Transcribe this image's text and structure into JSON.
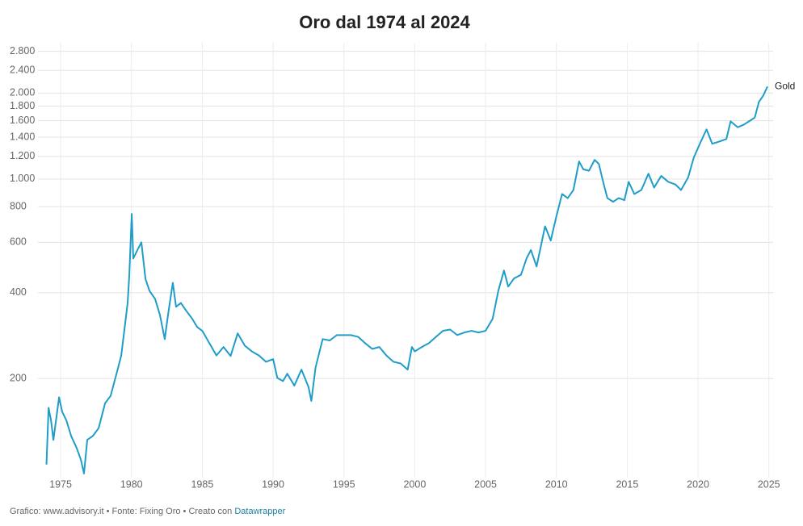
{
  "chart_data": {
    "type": "line",
    "title": "Oro dal 1974 al 2024",
    "footer": {
      "text": "Grafico: www.advisory.it • Fonte: Fixing Oro • Creato con",
      "link": "Datawrapper"
    },
    "log_scale": true,
    "grid": true,
    "xlim": [
      1973.4,
      2025.3
    ],
    "xticks": [
      1975,
      1980,
      1985,
      1990,
      1995,
      2000,
      2005,
      2010,
      2015,
      2020,
      2025
    ],
    "ylim": [
      90,
      3000
    ],
    "yticks": [
      200,
      400,
      600,
      800,
      {
        "value": 1000,
        "label": "1.000"
      },
      {
        "value": 1200,
        "label": "1.200"
      },
      {
        "value": 1400,
        "label": "1.400"
      },
      {
        "value": 1600,
        "label": "1.600"
      },
      {
        "value": 1800,
        "label": "1.800"
      },
      {
        "value": 2000,
        "label": "2.000"
      },
      {
        "value": 2400,
        "label": "2.400"
      },
      {
        "value": 2800,
        "label": "2.800"
      }
    ],
    "x": [
      1974.0,
      1974.15,
      1974.32,
      1974.49,
      1974.89,
      1975.11,
      1975.4,
      1975.74,
      1976.14,
      1976.43,
      1976.65,
      1976.88,
      1977.28,
      1977.68,
      1978.14,
      1978.53,
      1978.99,
      1979.28,
      1979.56,
      1979.73,
      1979.85,
      1980.02,
      1980.13,
      1980.42,
      1980.7,
      1980.99,
      1981.27,
      1981.67,
      1982.01,
      1982.35,
      1982.58,
      1982.92,
      1983.15,
      1983.49,
      1983.84,
      1984.29,
      1984.64,
      1985.0,
      1985.5,
      1986.0,
      1986.5,
      1987.0,
      1987.5,
      1988.0,
      1988.5,
      1989.0,
      1989.5,
      1990.0,
      1990.3,
      1990.7,
      1991.0,
      1991.5,
      1992.0,
      1992.5,
      1992.7,
      1993.0,
      1993.5,
      1994.0,
      1994.5,
      1995.0,
      1995.5,
      1996.0,
      1996.5,
      1997.0,
      1997.5,
      1998.0,
      1998.5,
      1999.0,
      1999.5,
      1999.8,
      2000.0,
      2000.5,
      2001.0,
      2001.5,
      2002.0,
      2002.5,
      2003.0,
      2003.5,
      2004.0,
      2004.5,
      2005.0,
      2005.5,
      2005.9,
      2006.3,
      2006.6,
      2007.0,
      2007.5,
      2007.9,
      2008.2,
      2008.6,
      2008.9,
      2009.2,
      2009.6,
      2010.0,
      2010.4,
      2010.8,
      2011.2,
      2011.6,
      2011.9,
      2012.3,
      2012.7,
      2013.0,
      2013.3,
      2013.6,
      2014.0,
      2014.4,
      2014.8,
      2015.1,
      2015.5,
      2016.0,
      2016.5,
      2016.9,
      2017.4,
      2017.9,
      2018.4,
      2018.8,
      2019.3,
      2019.7,
      2020.2,
      2020.6,
      2021.0,
      2021.5,
      2022.0,
      2022.3,
      2022.8,
      2023.2,
      2023.6,
      2024.0,
      2024.3,
      2024.6,
      2024.9
    ],
    "series": [
      {
        "name": "Gold",
        "color": "#1f9dc8",
        "values": [
          100,
          158,
          143,
          122,
          172,
          153,
          143,
          126,
          114,
          104,
          93,
          122,
          126,
          134,
          164,
          174,
          212,
          241,
          313,
          368,
          462,
          755,
          527,
          564,
          600,
          447,
          406,
          380,
          334,
          275,
          334,
          433,
          357,
          368,
          347,
          324,
          303,
          294,
          266,
          241,
          258,
          240,
          288,
          261,
          249,
          241,
          229,
          234,
          201,
          196,
          208,
          189,
          215,
          187,
          167,
          219,
          275,
          272,
          284,
          284,
          284,
          280,
          266,
          254,
          258,
          241,
          229,
          226,
          215,
          258,
          249,
          258,
          266,
          280,
          294,
          297,
          284,
          290,
          294,
          290,
          294,
          324,
          406,
          478,
          420,
          448,
          462,
          528,
          564,
          494,
          580,
          683,
          609,
          740,
          886,
          857,
          915,
          1152,
          1081,
          1069,
          1167,
          1128,
          977,
          857,
          832,
          857,
          843,
          977,
          886,
          915,
          1044,
          933,
          1025,
          977,
          957,
          915,
          1012,
          1189,
          1353,
          1492,
          1329,
          1353,
          1380,
          1592,
          1518,
          1547,
          1592,
          1640,
          1863,
          1957,
          2108
        ]
      }
    ]
  }
}
